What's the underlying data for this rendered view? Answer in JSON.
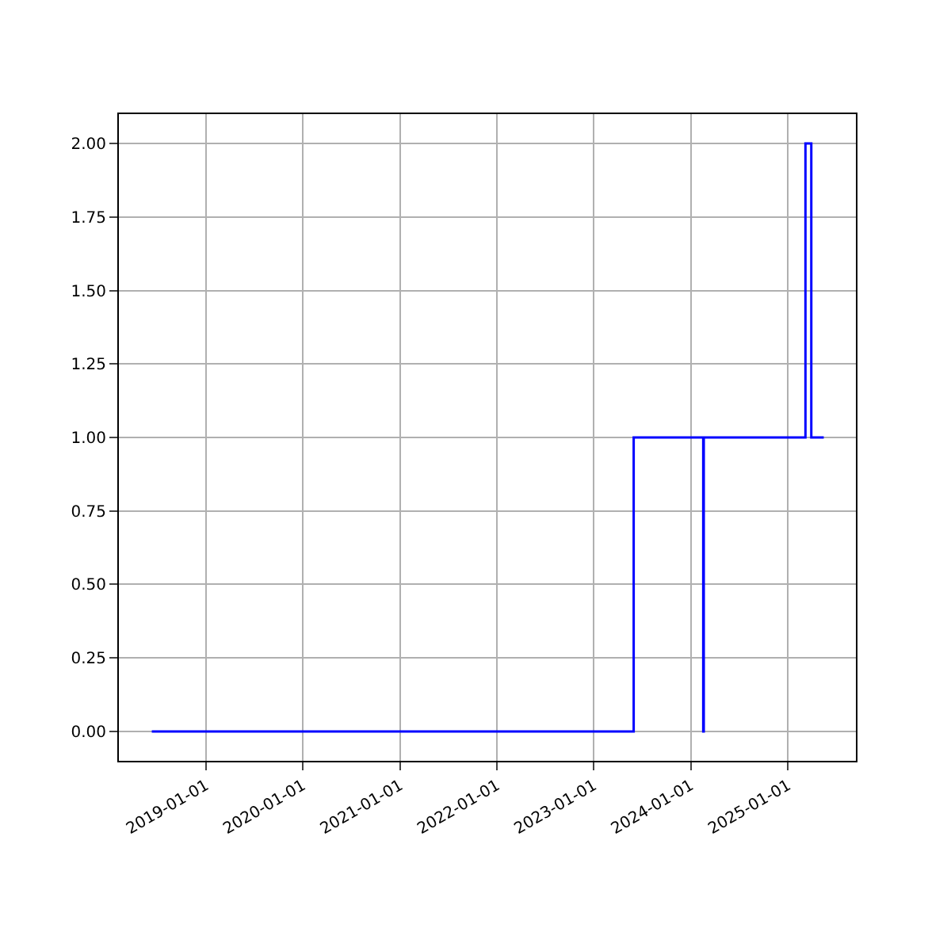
{
  "chart_data": {
    "type": "step",
    "x": [
      "2018-06-11",
      "2023-05-31",
      "2024-02-17",
      "2024-02-19",
      "2025-03-08",
      "2025-03-30",
      "2025-05-16"
    ],
    "series": [
      {
        "color": "#0000ff",
        "values": [
          0,
          1,
          0,
          1,
          2,
          1,
          1
        ]
      }
    ],
    "xlim": [
      "2018-02-07",
      "2025-09-14"
    ],
    "xticks": [
      "2019-01-01",
      "2020-01-01",
      "2021-01-01",
      "2022-01-01",
      "2023-01-01",
      "2024-01-01",
      "2025-01-01"
    ],
    "ylim": [
      -0.1,
      2.1
    ],
    "yticks": [
      {
        "value": 0,
        "label": "0.00"
      },
      {
        "value": 0.25,
        "label": "0.25"
      },
      {
        "value": 0.5,
        "label": "0.50"
      },
      {
        "value": 0.75,
        "label": "0.75"
      },
      {
        "value": 1,
        "label": "1.00"
      },
      {
        "value": 1.25,
        "label": "1.25"
      },
      {
        "value": 1.5,
        "label": "1.50"
      },
      {
        "value": 1.75,
        "label": "1.75"
      },
      {
        "value": 2,
        "label": "2.00"
      }
    ],
    "grid": true,
    "legend": false
  }
}
